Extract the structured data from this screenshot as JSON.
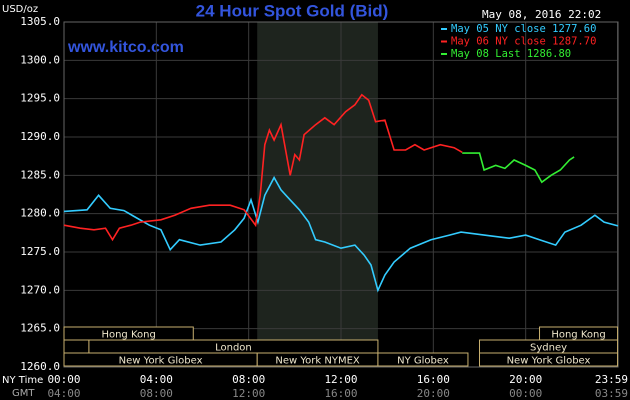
{
  "chart_data": {
    "type": "line",
    "title": "24 Hour Spot Gold (Bid)",
    "y_unit": "USD/oz",
    "timestamp": "May 08, 2016 22:02",
    "website": "www.kitco.com",
    "x_axis_label": "NY Time",
    "x2_axis_label": "GMT",
    "xlim": [
      0,
      24
    ],
    "ylim": [
      1260,
      1305
    ],
    "grid": true,
    "legend": "top-right",
    "xticks": [
      {
        "value": 0,
        "label": "00:00"
      },
      {
        "value": 4,
        "label": "04:00"
      },
      {
        "value": 8,
        "label": "08:00"
      },
      {
        "value": 12,
        "label": "12:00"
      },
      {
        "value": 16,
        "label": "16:00"
      },
      {
        "value": 20,
        "label": "20:00"
      },
      {
        "value": 23.98,
        "label": "23:59"
      }
    ],
    "x2ticks": [
      {
        "value": 0,
        "label": "04:00"
      },
      {
        "value": 4,
        "label": "08:00"
      },
      {
        "value": 8,
        "label": "12:00"
      },
      {
        "value": 12,
        "label": "16:00"
      },
      {
        "value": 16,
        "label": "20:00"
      },
      {
        "value": 20,
        "label": "00:00"
      },
      {
        "value": 23.98,
        "label": "03:59"
      }
    ],
    "yticks": [
      {
        "value": 1260,
        "label": "1260.0"
      },
      {
        "value": 1265,
        "label": "1265.0"
      },
      {
        "value": 1270,
        "label": "1270.0"
      },
      {
        "value": 1275,
        "label": "1275.0"
      },
      {
        "value": 1280,
        "label": "1280.0"
      },
      {
        "value": 1285,
        "label": "1285.0"
      },
      {
        "value": 1290,
        "label": "1290.0"
      },
      {
        "value": 1295,
        "label": "1295.0"
      },
      {
        "value": 1300,
        "label": "1300.0"
      },
      {
        "value": 1305,
        "label": "1305.0"
      }
    ],
    "series": [
      {
        "name": "May 05 NY close 1277.60",
        "color": "#33ccff",
        "x": [
          0,
          1,
          1.5,
          2,
          2.6,
          3,
          3.7,
          4.2,
          4.6,
          5,
          5.9,
          6.8,
          7.4,
          7.8,
          8.1,
          8.4,
          8.7,
          9.1,
          9.4,
          9.8,
          10.2,
          10.6,
          10.9,
          11.3,
          12,
          12.6,
          13,
          13.3,
          13.6,
          13.9,
          14.3,
          15,
          15.9,
          16.7,
          17.2,
          18.5,
          19.3,
          20,
          20.6,
          21.3,
          21.7,
          22.4,
          23,
          23.4,
          24
        ],
        "values": [
          1280.3,
          1280.5,
          1282.4,
          1280.7,
          1280.4,
          1279.7,
          1278.5,
          1277.9,
          1275.3,
          1276.6,
          1275.9,
          1276.3,
          1277.9,
          1279.4,
          1281.8,
          1278.9,
          1282.4,
          1284.7,
          1283.1,
          1281.8,
          1280.5,
          1278.9,
          1276.6,
          1276.3,
          1275.5,
          1275.9,
          1274.6,
          1273.3,
          1270.0,
          1272.0,
          1273.7,
          1275.5,
          1276.6,
          1277.2,
          1277.6,
          1277.1,
          1276.8,
          1277.2,
          1276.6,
          1275.9,
          1277.6,
          1278.5,
          1279.8,
          1278.9,
          1278.4
        ]
      },
      {
        "name": "May 06 NY close 1287.70",
        "color": "#ff2222",
        "x": [
          0,
          0.7,
          1.3,
          1.8,
          2.1,
          2.4,
          2.9,
          3.3,
          4.2,
          4.8,
          5.5,
          6.3,
          7.2,
          7.8,
          8.3,
          8.5,
          8.7,
          8.9,
          9.1,
          9.4,
          9.6,
          9.8,
          10,
          10.2,
          10.4,
          10.9,
          11.3,
          11.7,
          12.2,
          12.6,
          12.9,
          13.2,
          13.5,
          13.9,
          14.3,
          14.8,
          15.2,
          15.6,
          16.3,
          16.9,
          17.25
        ],
        "values": [
          1278.5,
          1278.1,
          1277.9,
          1278.1,
          1276.6,
          1278.1,
          1278.5,
          1278.9,
          1279.2,
          1279.8,
          1280.7,
          1281.1,
          1281.1,
          1280.5,
          1278.5,
          1282.4,
          1289.0,
          1290.9,
          1289.6,
          1291.6,
          1288.3,
          1285.0,
          1287.7,
          1287.0,
          1290.3,
          1291.6,
          1292.5,
          1291.6,
          1293.3,
          1294.2,
          1295.5,
          1294.8,
          1292.0,
          1292.2,
          1288.3,
          1288.3,
          1289.0,
          1288.3,
          1289.0,
          1288.6,
          1288.0
        ]
      },
      {
        "name": "May 08 Last 1286.80",
        "color": "#33ee33",
        "x": [
          17.25,
          18,
          18.2,
          18.7,
          19.1,
          19.5,
          20,
          20.4,
          20.7,
          21.1,
          21.5,
          21.9,
          22.1
        ],
        "values": [
          1287.9,
          1287.9,
          1285.7,
          1286.3,
          1285.9,
          1287.0,
          1286.3,
          1285.7,
          1284.1,
          1285.0,
          1285.7,
          1287.0,
          1287.4
        ]
      }
    ],
    "sessions": [
      [
        {
          "label": "Hong Kong",
          "start": 0,
          "end": 5.6
        },
        {
          "label": "Hong Kong",
          "start": 20.6,
          "end": 23.98
        }
      ],
      [
        {
          "label": null,
          "start": 0,
          "end": 1.08
        },
        {
          "label": "London",
          "start": 1.08,
          "end": 13.6
        },
        {
          "label": "Sydney",
          "start": 18,
          "end": 23.98
        }
      ],
      [
        {
          "label": "New York Globex",
          "start": 0,
          "end": 8.37
        },
        {
          "label": "New York NYMEX",
          "start": 8.37,
          "end": 13.6,
          "shaded": true
        },
        {
          "label": "NY Globex",
          "start": 13.6,
          "end": 17.5
        },
        {
          "label": "New York Globex",
          "start": 18,
          "end": 23.98
        }
      ]
    ]
  }
}
